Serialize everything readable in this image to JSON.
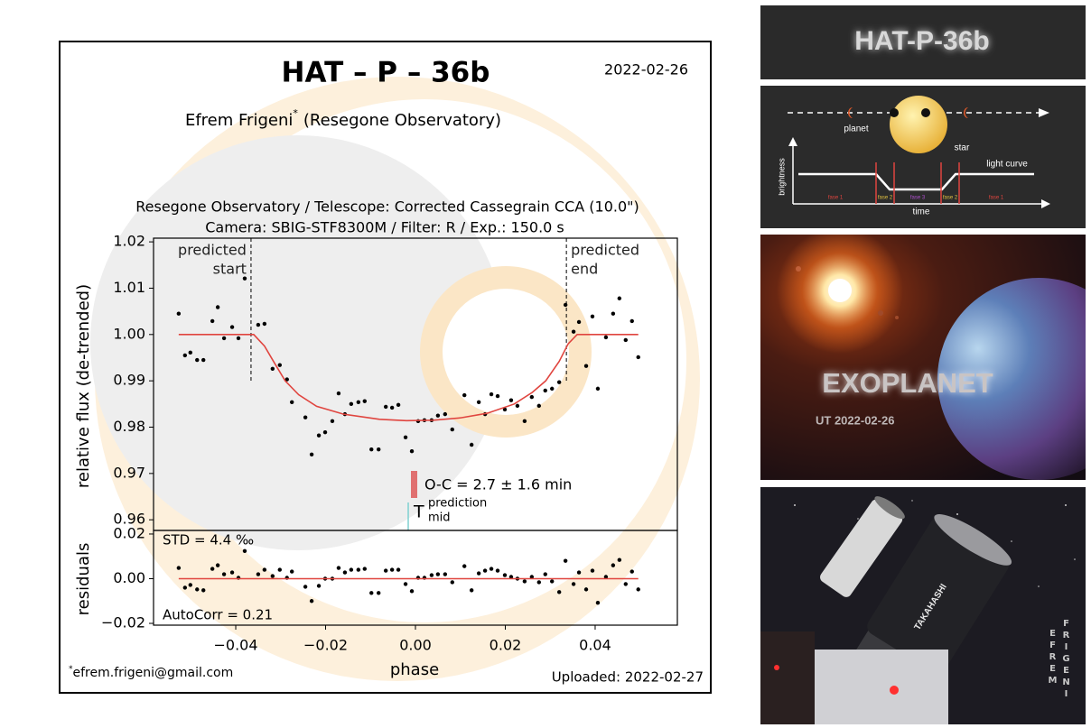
{
  "chart_data": [
    {
      "type": "scatter",
      "title": "HAT – P – 36b",
      "date": "2022-02-26",
      "author": "Efrem Frigeni",
      "author_mark": "*",
      "observatory": "(Resegone Observatory)",
      "setup": [
        "Resegone Observatory / Telescope: Corrected Cassegrain CCA (10.0\")",
        "Camera: SBIG-STF8300M / Filter: R / Exp.: 150.0 s"
      ],
      "ylabel": "relative flux (de-trended)",
      "xlim": [
        -0.0583,
        0.0583
      ],
      "ylim": [
        0.9577,
        1.0208
      ],
      "yticks": [
        0.96,
        0.97,
        0.98,
        0.99,
        {
          "value": 1.0,
          "label": "1.00"
        },
        1.01,
        1.02
      ],
      "series": [
        {
          "mode": "markers",
          "color": "#000000",
          "x": [
            -0.0527,
            -0.0513,
            -0.0501,
            -0.0486,
            -0.0472,
            -0.0452,
            -0.044,
            -0.0426,
            -0.0408,
            -0.0394,
            -0.038,
            -0.035,
            -0.0336,
            -0.0318,
            -0.0302,
            -0.0286,
            -0.0275,
            -0.0245,
            -0.0231,
            -0.0215,
            -0.0201,
            -0.0185,
            -0.0171,
            -0.0157,
            -0.0143,
            -0.0127,
            -0.0113,
            -0.0098,
            -0.0082,
            -0.0066,
            -0.0052,
            -0.0038,
            -0.0022,
            -0.0008,
            0.0006,
            0.002,
            0.0036,
            0.005,
            0.0066,
            0.0082,
            0.0109,
            0.0125,
            0.0141,
            0.0155,
            0.0169,
            0.0183,
            0.0199,
            0.0213,
            0.0227,
            0.0243,
            0.0259,
            0.0275,
            0.0289,
            0.0304,
            0.032,
            0.0334,
            0.0352,
            0.0364,
            0.038,
            0.0394,
            0.0406,
            0.0424,
            0.044,
            0.0454,
            0.0468,
            0.0482,
            0.0496
          ],
          "values": [
            1.0045,
            0.9955,
            0.9961,
            0.9945,
            0.9945,
            1.0029,
            1.0059,
            0.9992,
            1.0016,
            0.9992,
            1.0121,
            1.0021,
            1.0023,
            0.9926,
            0.9934,
            0.9903,
            0.9854,
            0.9821,
            0.9741,
            0.9782,
            0.9789,
            0.9813,
            0.9873,
            0.9828,
            0.985,
            0.9854,
            0.9856,
            0.9752,
            0.9752,
            0.9844,
            0.9842,
            0.9848,
            0.9778,
            0.9748,
            0.9813,
            0.9815,
            0.9815,
            0.9825,
            0.9828,
            0.9795,
            0.9869,
            0.9762,
            0.9854,
            0.9828,
            0.9871,
            0.9867,
            0.9838,
            0.9858,
            0.9846,
            0.9813,
            0.9865,
            0.9846,
            0.9879,
            0.9883,
            0.9897,
            1.0064,
            1.0006,
            1.0027,
            0.9932,
            1.0039,
            0.9883,
            0.9994,
            1.0045,
            1.0078,
            0.9988,
            1.0029,
            0.9951
          ]
        },
        {
          "mode": "line",
          "color": "#e0453f",
          "x": [
            -0.0527,
            -0.036,
            -0.0336,
            -0.0316,
            -0.029,
            -0.026,
            -0.022,
            -0.016,
            -0.008,
            -0.002,
            0.004,
            0.01,
            0.016,
            0.022,
            0.026,
            0.029,
            0.032,
            0.034,
            0.036,
            0.0496
          ],
          "values": [
            1.0,
            1.0,
            0.9975,
            0.9942,
            0.99,
            0.987,
            0.9845,
            0.9828,
            0.9817,
            0.9814,
            0.9815,
            0.982,
            0.983,
            0.985,
            0.9875,
            0.99,
            0.9942,
            0.998,
            1.0,
            1.0
          ]
        }
      ],
      "annotations": [
        {
          "text": [
            "predicted",
            "start"
          ],
          "x": -0.0366
        },
        {
          "text": [
            "predicted",
            "end"
          ],
          "x": 0.0336
        }
      ],
      "o_c": "O-C = 2.7 ± 1.6 min",
      "tmid": {
        "symbol": "T",
        "sup": "prediction",
        "sub": "mid"
      }
    },
    {
      "type": "scatter",
      "ylabel": "residuals",
      "xlabel": "phase",
      "xlim": [
        -0.0583,
        0.0583
      ],
      "ylim": [
        -0.0208,
        0.0216
      ],
      "xticks": [
        {
          "value": -0.04,
          "label": "−0.04"
        },
        {
          "value": -0.02,
          "label": "−0.02"
        },
        {
          "value": 0,
          "label": "0.00"
        },
        0.02,
        0.04
      ],
      "yticks": [
        {
          "value": -0.02,
          "label": "−0.02"
        },
        {
          "value": 0,
          "label": "0.00"
        },
        0.02
      ],
      "series": [
        {
          "mode": "markers",
          "color": "#000000",
          "x": [
            -0.0527,
            -0.0513,
            -0.0501,
            -0.0486,
            -0.0472,
            -0.0452,
            -0.044,
            -0.0426,
            -0.0408,
            -0.0394,
            -0.038,
            -0.035,
            -0.0336,
            -0.0318,
            -0.0302,
            -0.0286,
            -0.0275,
            -0.0245,
            -0.0231,
            -0.0215,
            -0.0201,
            -0.0185,
            -0.0171,
            -0.0157,
            -0.0143,
            -0.0127,
            -0.0113,
            -0.0098,
            -0.0082,
            -0.0066,
            -0.0052,
            -0.0038,
            -0.0022,
            -0.0008,
            0.0006,
            0.002,
            0.0036,
            0.005,
            0.0066,
            0.0082,
            0.0109,
            0.0125,
            0.0141,
            0.0155,
            0.0169,
            0.0183,
            0.0199,
            0.0213,
            0.0227,
            0.0243,
            0.0259,
            0.0275,
            0.0289,
            0.0304,
            0.032,
            0.0334,
            0.0352,
            0.0364,
            0.038,
            0.0394,
            0.0406,
            0.0424,
            0.044,
            0.0454,
            0.0468,
            0.0482,
            0.0496
          ],
          "values": [
            0.0048,
            -0.004,
            -0.0028,
            -0.0048,
            -0.0052,
            0.0044,
            0.006,
            0.002,
            0.0028,
            0.0004,
            0.0124,
            0.002,
            0.004,
            0.0012,
            0.004,
            0.0004,
            0.0032,
            -0.0036,
            -0.01,
            -0.0032,
            0.0,
            0.0,
            0.0048,
            0.0028,
            0.004,
            0.004,
            0.0044,
            -0.0064,
            -0.0064,
            0.0036,
            0.004,
            0.004,
            -0.0024,
            -0.0056,
            0.0004,
            0.0004,
            0.0016,
            0.002,
            0.002,
            -0.0016,
            0.0056,
            -0.0052,
            0.0024,
            0.0036,
            0.0044,
            0.0036,
            0.0016,
            0.0008,
            0.0,
            -0.0012,
            0.0008,
            -0.0016,
            0.002,
            -0.0012,
            -0.006,
            0.008,
            -0.0024,
            0.0028,
            -0.0048,
            0.0036,
            -0.0108,
            0.0008,
            0.006,
            0.0084,
            -0.0024,
            0.0032,
            -0.0048
          ]
        },
        {
          "mode": "line",
          "color": "#e0453f",
          "x": [
            -0.0527,
            0.0496
          ],
          "values": [
            0,
            0
          ]
        }
      ],
      "std": "STD = 4.4 ‰",
      "autocorr": "AutoCorr = 0.21",
      "email_mark": "*",
      "email": "efrem.frigeni@gmail.com",
      "uploaded": "Uploaded: 2022-02-27"
    }
  ],
  "side_panels": {
    "name_banner": "HAT-P-36b",
    "transit_diagram": {
      "planet": "planet",
      "star": "star",
      "light_curve": "light curve",
      "brightness": "brightness",
      "time": "time",
      "phases": [
        "fase 1",
        "fase 2",
        "fase 3",
        "fase 2",
        "fase 1"
      ]
    },
    "poster": {
      "title": "EXOPLANET",
      "date": "UT 2022-02-26"
    },
    "photo": {
      "brand": "TAKAHASHI",
      "credit_first": "EFREM",
      "credit_last": "FRIGENI"
    }
  }
}
